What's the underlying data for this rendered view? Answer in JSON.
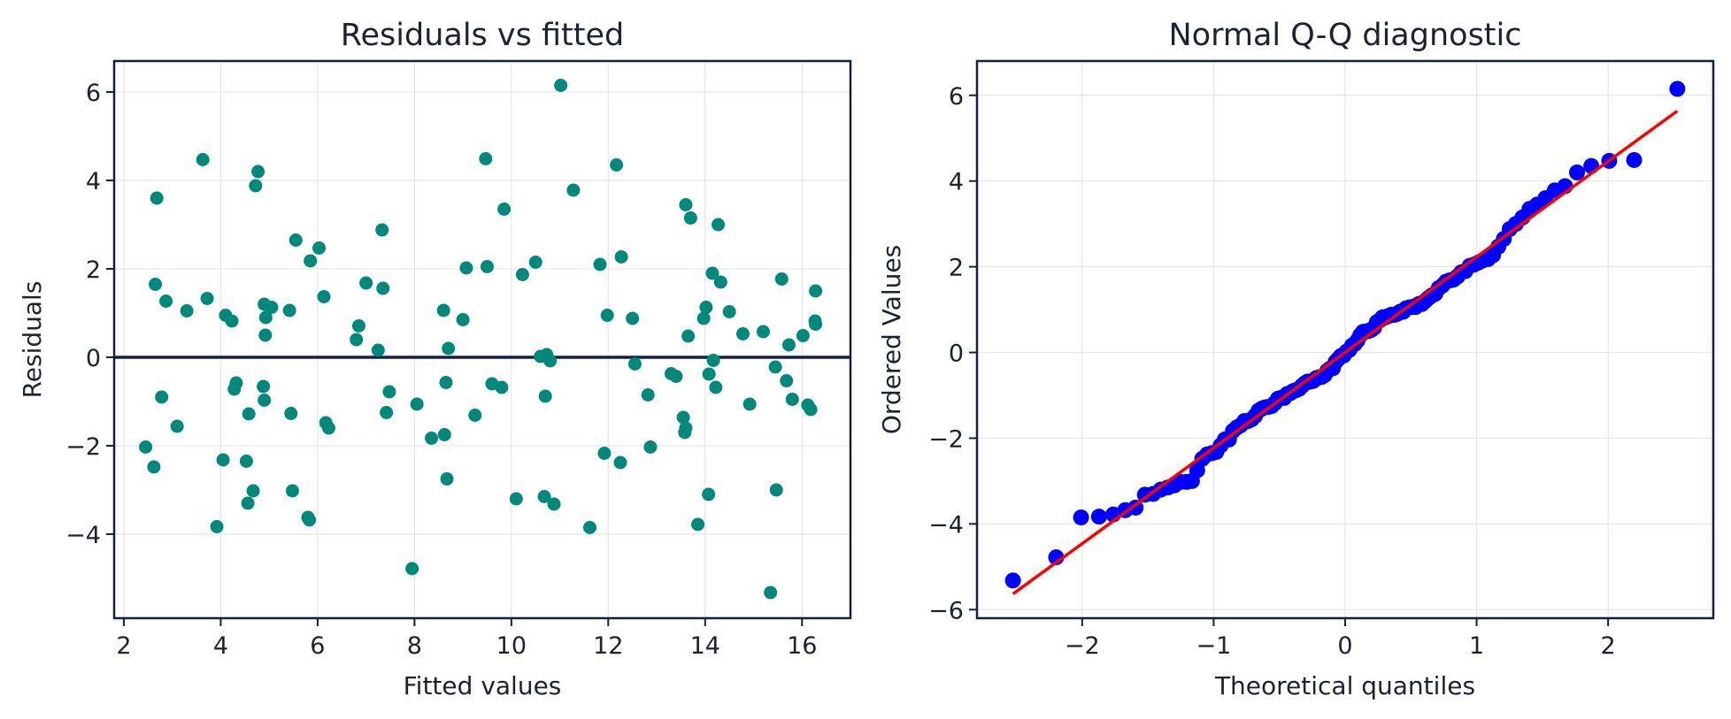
{
  "colors": {
    "residual_points": "#00897b",
    "qq_points": "#0000ff",
    "qq_line": "#ff0000",
    "zero_line": "#14213d",
    "axes": "#14213d",
    "text": "#1b2233",
    "grid": "#e6e6e6"
  },
  "chart_data": [
    {
      "type": "scatter",
      "title": "Residuals vs fitted",
      "xlabel": "Fitted values",
      "ylabel": "Residuals",
      "xlim": [
        1.8,
        17.0
      ],
      "ylim": [
        -5.9,
        6.7
      ],
      "xticks": [
        2,
        4,
        6,
        8,
        10,
        12,
        14,
        16
      ],
      "yticks": [
        -4,
        -2,
        0,
        2,
        4,
        6
      ],
      "xtick_labels": [
        "2",
        "4",
        "6",
        "8",
        "10",
        "12",
        "14",
        "16"
      ],
      "ytick_labels": [
        "−4",
        "−2",
        "0",
        "2",
        "4",
        "6"
      ],
      "grid": true,
      "reference_line": {
        "y": 0
      },
      "points": [
        [
          2.45,
          -2.03
        ],
        [
          2.62,
          -2.48
        ],
        [
          2.65,
          1.65
        ],
        [
          2.68,
          3.6
        ],
        [
          2.78,
          -0.9
        ],
        [
          2.87,
          1.27
        ],
        [
          3.1,
          -1.56
        ],
        [
          3.3,
          1.05
        ],
        [
          3.63,
          4.47
        ],
        [
          3.72,
          1.33
        ],
        [
          3.92,
          -3.83
        ],
        [
          4.05,
          -2.32
        ],
        [
          4.1,
          0.95
        ],
        [
          4.23,
          0.82
        ],
        [
          4.28,
          -0.72
        ],
        [
          4.32,
          -0.58
        ],
        [
          4.53,
          -2.35
        ],
        [
          4.56,
          -3.3
        ],
        [
          4.58,
          -1.28
        ],
        [
          4.67,
          -3.02
        ],
        [
          4.72,
          3.88
        ],
        [
          4.77,
          4.2
        ],
        [
          4.88,
          -0.66
        ],
        [
          4.9,
          -0.97
        ],
        [
          4.9,
          1.2
        ],
        [
          4.92,
          0.5
        ],
        [
          4.93,
          0.9
        ],
        [
          5.05,
          1.13
        ],
        [
          5.42,
          1.06
        ],
        [
          5.45,
          -1.27
        ],
        [
          5.48,
          -3.02
        ],
        [
          5.55,
          2.65
        ],
        [
          5.8,
          -3.62
        ],
        [
          5.83,
          -3.68
        ],
        [
          5.85,
          2.18
        ],
        [
          6.03,
          2.47
        ],
        [
          6.13,
          1.37
        ],
        [
          6.17,
          -1.48
        ],
        [
          6.23,
          -1.6
        ],
        [
          6.8,
          0.4
        ],
        [
          6.85,
          0.71
        ],
        [
          7.0,
          1.68
        ],
        [
          7.25,
          0.16
        ],
        [
          7.33,
          2.88
        ],
        [
          7.35,
          1.56
        ],
        [
          7.42,
          -1.25
        ],
        [
          7.48,
          -0.78
        ],
        [
          7.95,
          -4.78
        ],
        [
          8.05,
          -1.06
        ],
        [
          8.35,
          -1.83
        ],
        [
          8.6,
          1.06
        ],
        [
          8.62,
          -1.75
        ],
        [
          8.65,
          -0.57
        ],
        [
          8.67,
          -2.75
        ],
        [
          8.7,
          0.2
        ],
        [
          9.0,
          0.85
        ],
        [
          9.07,
          2.02
        ],
        [
          9.25,
          -1.31
        ],
        [
          9.47,
          4.49
        ],
        [
          9.5,
          2.05
        ],
        [
          9.6,
          -0.6
        ],
        [
          9.8,
          -0.68
        ],
        [
          9.85,
          3.35
        ],
        [
          10.1,
          -3.2
        ],
        [
          10.23,
          1.87
        ],
        [
          10.5,
          2.15
        ],
        [
          10.6,
          0.02
        ],
        [
          10.68,
          -3.15
        ],
        [
          10.7,
          -0.88
        ],
        [
          10.73,
          0.06
        ],
        [
          10.8,
          -0.08
        ],
        [
          10.88,
          -3.32
        ],
        [
          11.02,
          6.15
        ],
        [
          11.28,
          3.78
        ],
        [
          11.62,
          -3.85
        ],
        [
          11.83,
          2.1
        ],
        [
          11.92,
          -2.17
        ],
        [
          11.98,
          0.95
        ],
        [
          12.17,
          4.35
        ],
        [
          12.25,
          -2.38
        ],
        [
          12.27,
          2.27
        ],
        [
          12.5,
          0.88
        ],
        [
          12.55,
          -0.15
        ],
        [
          12.82,
          -0.85
        ],
        [
          12.87,
          -2.03
        ],
        [
          13.3,
          -0.37
        ],
        [
          13.4,
          -0.43
        ],
        [
          13.55,
          -1.36
        ],
        [
          13.58,
          -1.7
        ],
        [
          13.6,
          -1.6
        ],
        [
          13.6,
          3.45
        ],
        [
          13.65,
          0.48
        ],
        [
          13.7,
          3.15
        ],
        [
          13.85,
          -3.78
        ],
        [
          13.97,
          0.88
        ],
        [
          14.02,
          1.13
        ],
        [
          14.07,
          -3.1
        ],
        [
          14.08,
          -0.38
        ],
        [
          14.15,
          1.9
        ],
        [
          14.17,
          -0.07
        ],
        [
          14.22,
          -0.68
        ],
        [
          14.27,
          3.0
        ],
        [
          14.32,
          1.7
        ],
        [
          14.5,
          1.03
        ],
        [
          14.78,
          0.53
        ],
        [
          14.92,
          -1.06
        ],
        [
          15.2,
          0.58
        ],
        [
          15.35,
          -5.32
        ],
        [
          15.45,
          -0.22
        ],
        [
          15.47,
          -3.0
        ],
        [
          15.58,
          1.77
        ],
        [
          15.68,
          -0.53
        ],
        [
          15.73,
          0.28
        ],
        [
          15.8,
          -0.95
        ],
        [
          16.02,
          0.49
        ],
        [
          16.12,
          -1.08
        ],
        [
          16.18,
          -1.18
        ],
        [
          16.27,
          0.82
        ],
        [
          16.28,
          0.75
        ],
        [
          16.28,
          1.5
        ]
      ]
    },
    {
      "type": "scatter",
      "title": "Normal Q-Q diagnostic",
      "xlabel": "Theoretical quantiles",
      "ylabel": "Ordered Values",
      "xlim": [
        -2.8,
        2.8
      ],
      "ylim": [
        -6.2,
        6.8
      ],
      "xticks": [
        -2,
        -1,
        0,
        1,
        2
      ],
      "yticks": [
        -6,
        -4,
        -2,
        0,
        2,
        4,
        6
      ],
      "xtick_labels": [
        "−2",
        "−1",
        "0",
        "1",
        "2"
      ],
      "ytick_labels": [
        "−6",
        "−4",
        "−2",
        "0",
        "2",
        "4",
        "6"
      ],
      "grid": true,
      "fit_line": {
        "intercept": 0.0,
        "slope": 2.23
      },
      "ordered_values": [
        -5.32,
        -4.78,
        -3.85,
        -3.83,
        -3.78,
        -3.68,
        -3.62,
        -3.32,
        -3.3,
        -3.2,
        -3.15,
        -3.1,
        -3.02,
        -3.02,
        -3.0,
        -2.75,
        -2.48,
        -2.38,
        -2.35,
        -2.32,
        -2.17,
        -2.03,
        -2.03,
        -1.83,
        -1.75,
        -1.7,
        -1.6,
        -1.6,
        -1.56,
        -1.48,
        -1.36,
        -1.31,
        -1.28,
        -1.27,
        -1.25,
        -1.18,
        -1.08,
        -1.06,
        -1.06,
        -0.97,
        -0.95,
        -0.9,
        -0.88,
        -0.85,
        -0.78,
        -0.72,
        -0.68,
        -0.68,
        -0.66,
        -0.6,
        -0.58,
        -0.57,
        -0.53,
        -0.43,
        -0.38,
        -0.37,
        -0.22,
        -0.15,
        -0.08,
        -0.07,
        0.02,
        0.06,
        0.16,
        0.2,
        0.28,
        0.4,
        0.48,
        0.49,
        0.5,
        0.53,
        0.58,
        0.71,
        0.75,
        0.82,
        0.82,
        0.85,
        0.88,
        0.88,
        0.9,
        0.95,
        0.95,
        1.03,
        1.05,
        1.06,
        1.06,
        1.13,
        1.13,
        1.2,
        1.27,
        1.33,
        1.37,
        1.5,
        1.56,
        1.65,
        1.68,
        1.7,
        1.77,
        1.87,
        1.9,
        2.02,
        2.05,
        2.1,
        2.15,
        2.18,
        2.27,
        2.47,
        2.65,
        2.88,
        3.0,
        3.15,
        3.35,
        3.45,
        3.6,
        3.78,
        3.88,
        4.2,
        4.35,
        4.47,
        4.49,
        6.15
      ]
    }
  ]
}
